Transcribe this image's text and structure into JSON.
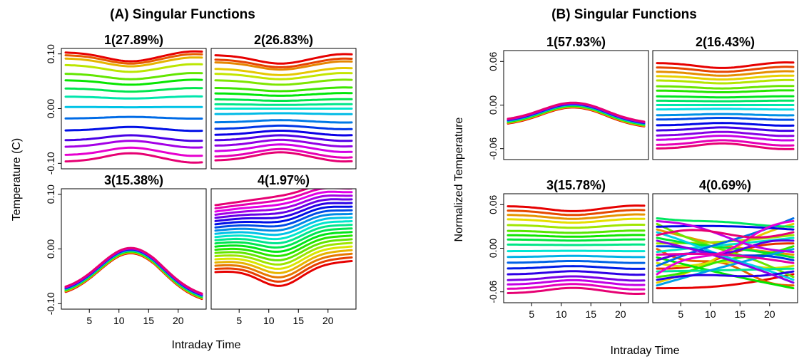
{
  "figure": {
    "left_title": "(A) Singular Functions",
    "right_title": "(B) Singular Functions",
    "left_ylabel": "Temperature (C)",
    "right_ylabel": "Normalized Temperature",
    "left_xlabel": "Intraday Time",
    "right_xlabel": "Intraday Time"
  },
  "chart_data": [
    {
      "group": "(A) Singular Functions",
      "type": "line",
      "ylabel": "Temperature (C)",
      "xlabel": "Intraday Time",
      "x_range": [
        1,
        24
      ],
      "xticks": [
        5,
        10,
        15,
        20
      ],
      "ylim": [
        -0.11,
        0.11
      ],
      "yticks": [
        -0.1,
        0.0,
        0.1
      ],
      "ytick_labels": [
        "-0.10",
        "0.00",
        "0.10"
      ],
      "panels": [
        {
          "title": "1(27.89%)",
          "pattern": "spread",
          "offsets_top": [
            0.103,
            0.098,
            0.092,
            0.08,
            0.064,
            0.052,
            0.037,
            0.022,
            0.003
          ],
          "offsets_bottom": [
            -0.018,
            -0.04,
            -0.058,
            -0.07,
            -0.085,
            -0.097
          ],
          "amplitude": 0.016
        },
        {
          "title": "2(26.83%)",
          "pattern": "spread",
          "offsets_top": [
            0.098,
            0.09,
            0.085,
            0.073,
            0.064,
            0.052,
            0.038,
            0.028,
            0.017,
            0.008,
            0.0
          ],
          "offsets_bottom": [
            -0.01,
            -0.025,
            -0.037,
            -0.048,
            -0.058,
            -0.068,
            -0.078,
            -0.088,
            -0.095
          ],
          "amplitude": 0.016
        },
        {
          "title": "3(15.38%)",
          "pattern": "hump",
          "peak": -0.003,
          "trough": -0.083,
          "peak_x": 12
        },
        {
          "title": "4(1.97%)",
          "pattern": "fan",
          "x_range_values": [
            -0.072,
            0.1
          ]
        }
      ]
    },
    {
      "group": "(B) Singular Functions",
      "type": "line",
      "ylabel": "Normalized Temperature",
      "xlabel": "Intraday Time",
      "x_range": [
        1,
        24
      ],
      "xticks": [
        5,
        10,
        15,
        20
      ],
      "ylim": [
        -0.075,
        0.075
      ],
      "yticks": [
        -0.06,
        0.0,
        0.06
      ],
      "ytick_labels": [
        "-0.06",
        "0.00",
        "0.06"
      ],
      "panels": [
        {
          "title": "1(57.93%)",
          "pattern": "hump",
          "peak": 0.0,
          "trough": -0.025,
          "peak_x": 12
        },
        {
          "title": "2(16.43%)",
          "pattern": "spread",
          "offsets_top": [
            0.058,
            0.052,
            0.046,
            0.04,
            0.034,
            0.026,
            0.02,
            0.012,
            0.006,
            0.0
          ],
          "offsets_bottom": [
            -0.006,
            -0.014,
            -0.02,
            -0.028,
            -0.035,
            -0.042,
            -0.048,
            -0.055,
            -0.06
          ],
          "amplitude": 0.012
        },
        {
          "title": "3(15.78%)",
          "pattern": "spread",
          "offsets_top": [
            0.058,
            0.052,
            0.046,
            0.04,
            0.032,
            0.024,
            0.018,
            0.012,
            0.005
          ],
          "offsets_bottom": [
            -0.004,
            -0.012,
            -0.02,
            -0.028,
            -0.036,
            -0.044,
            -0.05,
            -0.056,
            -0.062
          ],
          "amplitude": 0.012
        },
        {
          "title": "4(0.69%)",
          "pattern": "cross",
          "y_range_values": [
            -0.055,
            0.045
          ]
        }
      ]
    }
  ]
}
